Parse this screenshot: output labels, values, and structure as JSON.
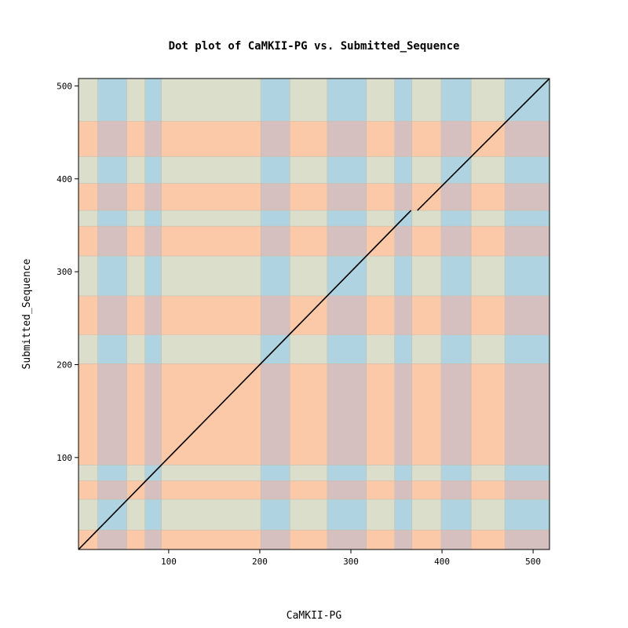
{
  "chart_data": {
    "type": "scatter",
    "title": "Dot plot of CaMKII-PG vs. Submitted_Sequence",
    "xlabel": "CaMKII-PG",
    "ylabel": "Submitted_Sequence",
    "xlim": [
      1,
      518
    ],
    "ylim": [
      1,
      508
    ],
    "x_ticks": [
      100,
      200,
      300,
      400,
      500
    ],
    "y_ticks": [
      100,
      200,
      300,
      400,
      500
    ],
    "x_tick_labels": [
      "100",
      "200",
      "300",
      "400",
      "500"
    ],
    "y_tick_labels": [
      "100",
      "200",
      "300",
      "400",
      "500"
    ],
    "grid": false,
    "x_bands": [
      {
        "start": 1,
        "end": 22,
        "kind": "khaki"
      },
      {
        "start": 22,
        "end": 54,
        "kind": "blue"
      },
      {
        "start": 54,
        "end": 74,
        "kind": "khaki"
      },
      {
        "start": 74,
        "end": 92,
        "kind": "blue"
      },
      {
        "start": 92,
        "end": 201,
        "kind": "khaki"
      },
      {
        "start": 201,
        "end": 233,
        "kind": "blue"
      },
      {
        "start": 233,
        "end": 274,
        "kind": "khaki"
      },
      {
        "start": 274,
        "end": 317,
        "kind": "blue"
      },
      {
        "start": 317,
        "end": 348,
        "kind": "khaki"
      },
      {
        "start": 348,
        "end": 367,
        "kind": "blue"
      },
      {
        "start": 367,
        "end": 399,
        "kind": "khaki"
      },
      {
        "start": 399,
        "end": 432,
        "kind": "blue"
      },
      {
        "start": 432,
        "end": 469,
        "kind": "khaki"
      },
      {
        "start": 469,
        "end": 518,
        "kind": "blue"
      }
    ],
    "y_bands": [
      {
        "start": 1,
        "end": 22,
        "kind": "orange"
      },
      {
        "start": 22,
        "end": 55,
        "kind": "khaki"
      },
      {
        "start": 55,
        "end": 75,
        "kind": "orange"
      },
      {
        "start": 75,
        "end": 92,
        "kind": "khaki"
      },
      {
        "start": 92,
        "end": 201,
        "kind": "orange"
      },
      {
        "start": 201,
        "end": 232,
        "kind": "khaki"
      },
      {
        "start": 232,
        "end": 274,
        "kind": "orange"
      },
      {
        "start": 274,
        "end": 317,
        "kind": "khaki"
      },
      {
        "start": 317,
        "end": 349,
        "kind": "orange"
      },
      {
        "start": 349,
        "end": 366,
        "kind": "khaki"
      },
      {
        "start": 366,
        "end": 395,
        "kind": "orange"
      },
      {
        "start": 395,
        "end": 424,
        "kind": "khaki"
      },
      {
        "start": 424,
        "end": 462,
        "kind": "orange"
      },
      {
        "start": 462,
        "end": 508,
        "kind": "khaki"
      }
    ],
    "series": [
      {
        "segments": [
          {
            "x1": 1,
            "y1": 1,
            "x2": 366,
            "y2": 366
          },
          {
            "x1": 373,
            "y1": 366,
            "x2": 518,
            "y2": 508
          }
        ]
      }
    ],
    "colors": {
      "khaki": "#dadecb",
      "blue": "#afd3e0",
      "orange": "#fcc9a8",
      "mauve": "#d6bfbf",
      "line": "#000000"
    }
  }
}
